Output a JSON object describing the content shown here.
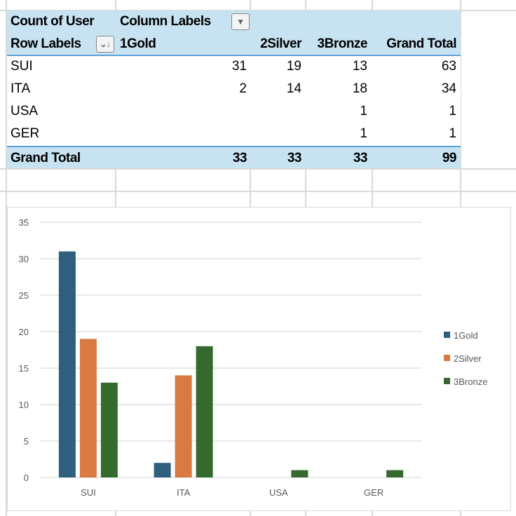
{
  "pivot": {
    "value_field": "Count of User",
    "column_labels": "Column Labels",
    "row_labels": "Row Labels",
    "columns": [
      "1Gold",
      "2Silver",
      "3Bronze",
      "Grand Total"
    ],
    "rows": [
      {
        "label": "SUI",
        "values": [
          "31",
          "19",
          "13",
          "63"
        ]
      },
      {
        "label": "ITA",
        "values": [
          "2",
          "14",
          "18",
          "34"
        ]
      },
      {
        "label": "USA",
        "values": [
          "",
          "",
          "1",
          "1"
        ]
      },
      {
        "label": "GER",
        "values": [
          "",
          "",
          "1",
          "1"
        ]
      }
    ],
    "grand_total": {
      "label": "Grand Total",
      "values": [
        "33",
        "33",
        "33",
        "99"
      ]
    }
  },
  "chart_data": {
    "type": "bar",
    "title": "",
    "xlabel": "",
    "ylabel": "",
    "categories": [
      "SUI",
      "ITA",
      "USA",
      "GER"
    ],
    "series": [
      {
        "name": "1Gold",
        "values": [
          31,
          2,
          0,
          0
        ],
        "color": "#2e5f7f"
      },
      {
        "name": "2Silver",
        "values": [
          19,
          14,
          0,
          0
        ],
        "color": "#d97a42"
      },
      {
        "name": "3Bronze",
        "values": [
          13,
          18,
          1,
          1
        ],
        "color": "#35692e"
      }
    ],
    "ylim": [
      0,
      35
    ],
    "yticks": [
      "0",
      "5",
      "10",
      "15",
      "20",
      "25",
      "30",
      "35"
    ],
    "grid": true,
    "legend": "right"
  }
}
